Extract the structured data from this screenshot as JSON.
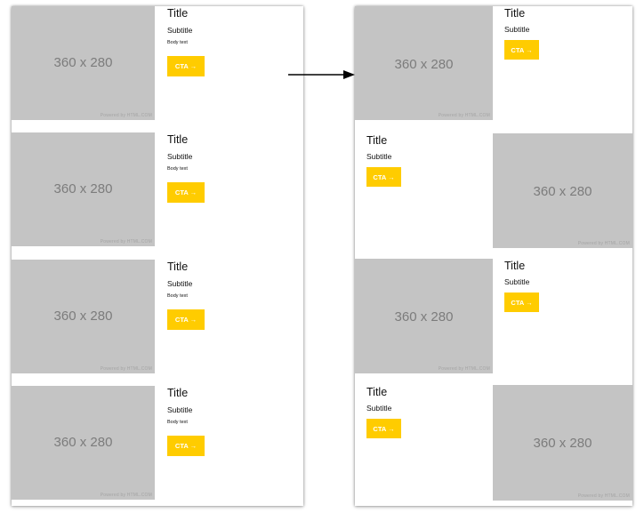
{
  "image_placeholder": {
    "dimensions_label": "360 x 280",
    "powered_by": "Powered by HTML.COM"
  },
  "card": {
    "title": "Title",
    "subtitle": "Subtitle",
    "body": "Body text",
    "cta_label": "CTA →"
  },
  "colors": {
    "placeholder_bg": "#c4c4c4",
    "placeholder_text": "#7c7c7c",
    "cta_bg": "#ffcc00",
    "cta_text": "#ffffff",
    "arrow": "#000000"
  },
  "icons": {
    "transition_arrow": "right-arrow-icon"
  }
}
